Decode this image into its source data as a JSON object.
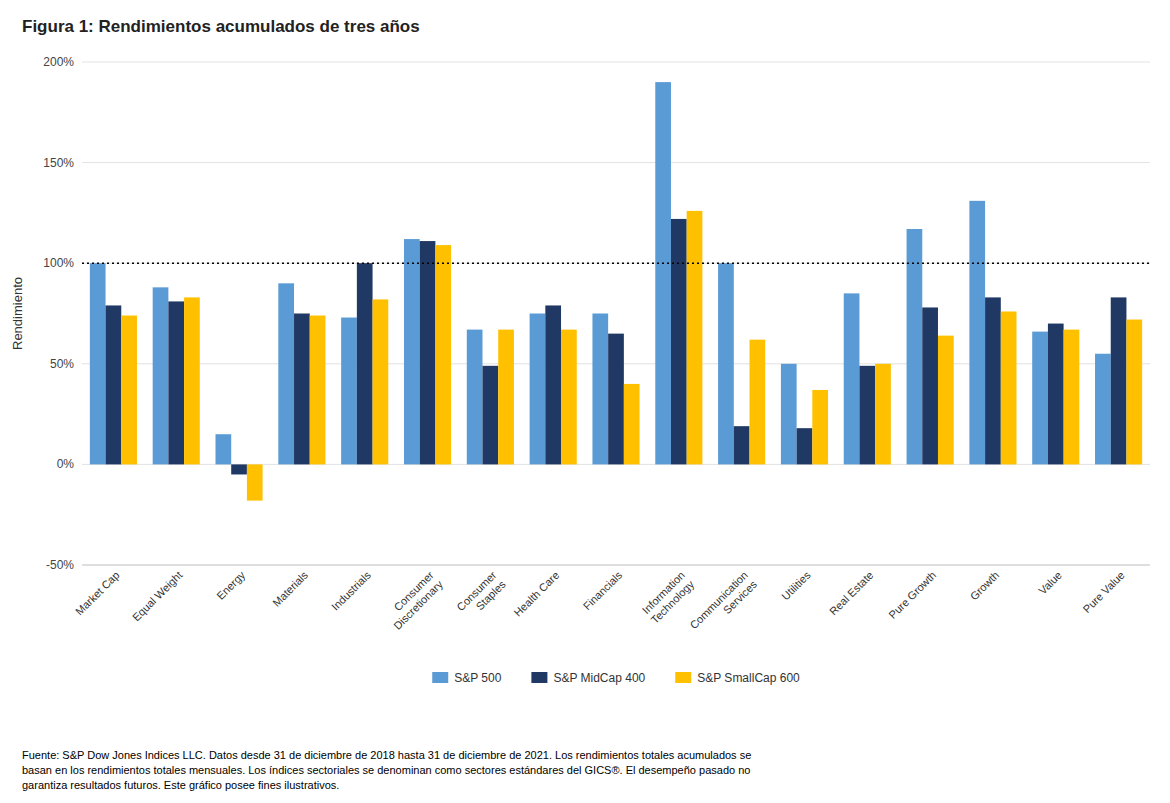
{
  "chart_data": {
    "type": "bar",
    "title": "Figura 1: Rendimientos acumulados de tres años",
    "y_label": "Rendimiento",
    "categories": [
      "Market Cap",
      "Equal Weight",
      "Energy",
      "Materials",
      "Industrials",
      "Consumer\nDiscretionary",
      "Consumer\nStaples",
      "Health Care",
      "Financials",
      "Information\nTechnology",
      "Communication\nServices",
      "Utilities",
      "Real Estate",
      "Pure Growth",
      "Growth",
      "Value",
      "Pure Value"
    ],
    "series": [
      {
        "name": "S&P 500",
        "color": "#5B9BD5",
        "values": [
          100,
          88,
          15,
          90,
          73,
          112,
          67,
          75,
          75,
          190,
          100,
          50,
          85,
          117,
          131,
          66,
          55
        ]
      },
      {
        "name": "S&P MidCap 400",
        "color": "#1F3864",
        "values": [
          79,
          81,
          -5,
          75,
          100,
          111,
          49,
          79,
          65,
          122,
          19,
          18,
          49,
          78,
          83,
          70,
          83
        ]
      },
      {
        "name": "S&P SmallCap 600",
        "color": "#FFC000",
        "values": [
          74,
          83,
          -18,
          74,
          82,
          109,
          67,
          67,
          40,
          126,
          62,
          37,
          50,
          64,
          76,
          67,
          72
        ]
      }
    ],
    "reference_line": 100,
    "ylim": [
      -50,
      200
    ],
    "yticks": [
      {
        "value": -50,
        "label": "-50%"
      },
      {
        "value": 0,
        "label": "0%"
      },
      {
        "value": 50,
        "label": "50%"
      },
      {
        "value": 100,
        "label": "100%"
      },
      {
        "value": 150,
        "label": "150%"
      },
      {
        "value": 200,
        "label": "200%"
      }
    ],
    "grid": true,
    "legend": "bottom",
    "footnote": "Fuente: S&P Dow Jones Indices LLC. Datos desde 31 de diciembre de 2018 hasta 31 de diciembre de 2021. Los rendimientos totales acumulados se\nbasan en los rendimientos totales mensuales. Los índices sectoriales se denominan como sectores estándares del GICS®. El desempeño pasado no\ngarantiza resultados futuros. Este gráfico posee fines ilustrativos."
  }
}
